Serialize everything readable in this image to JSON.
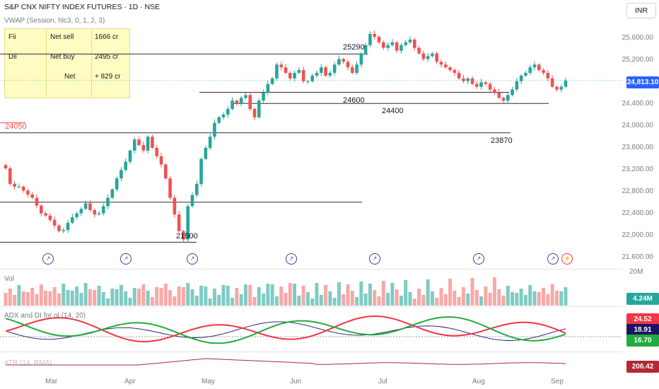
{
  "header": {
    "title": "S&P CNX NIFTY INDEX FUTURES · 1D · NSE",
    "indicator": "VWAP (Session, hlc3, 0, 1, 2, 3)",
    "currency": "INR"
  },
  "info_table": {
    "rows": [
      {
        "label": "Fii",
        "action": "Net sell",
        "value": "1666 cr"
      },
      {
        "label": "Dii",
        "action": "Net buy",
        "value": "2495 cr"
      },
      {
        "label": "",
        "action": "Net",
        "value": "+ 829 cr"
      }
    ]
  },
  "price_axis": {
    "ticks": [
      "25,600.00",
      "25,200.00",
      "24,400.00",
      "24,000.00",
      "23,600.00",
      "23,200.00",
      "22,800.00",
      "22,400.00",
      "22,000.00",
      "21,600.00"
    ],
    "current_price": "24,813.10",
    "current_color": "#2962ff"
  },
  "levels": [
    {
      "label": "25290",
      "value": 25290
    },
    {
      "label": "24600",
      "value": 24600
    },
    {
      "label": "24400",
      "value": 24400
    },
    {
      "label": "24050",
      "value": 24050
    },
    {
      "label": "23870",
      "value": 23870
    },
    {
      "label": "21900",
      "value": 21900
    }
  ],
  "volume": {
    "label": "Vol",
    "axis_tick": "20M",
    "current": "4.24M",
    "current_color": "#26a69a"
  },
  "adx": {
    "label": "ADX and DI for ol (14, 20)",
    "values": [
      {
        "value": "24.52",
        "color": "#f23645"
      },
      {
        "value": "18.91",
        "color": "#1b1464"
      },
      {
        "value": "16.70",
        "color": "#22ab3f"
      }
    ]
  },
  "atr": {
    "label": "ATR (14, RMA)",
    "current": "206.42",
    "color": "#b22833"
  },
  "x_axis": {
    "months": [
      "Mar",
      "Apr",
      "May",
      "Jun",
      "Jul",
      "Aug",
      "Sep"
    ]
  },
  "colors": {
    "up": "#26a69a",
    "down": "#ef5350",
    "level_line": "#131722",
    "table_bg": "#fffcc2"
  },
  "chart_data": {
    "type": "candlestick",
    "title": "S&P CNX NIFTY INDEX FUTURES · 1D · NSE",
    "ylim": [
      21600,
      25800
    ],
    "closes": [
      23230,
      22950,
      22900,
      22900,
      22830,
      22760,
      22700,
      22560,
      22420,
      22380,
      22300,
      22200,
      22100,
      22120,
      22250,
      22350,
      22420,
      22500,
      22600,
      22480,
      22400,
      22420,
      22550,
      22700,
      22850,
      23050,
      23200,
      23350,
      23550,
      23750,
      23650,
      23550,
      23800,
      23600,
      23450,
      23300,
      23050,
      22700,
      22400,
      22100,
      21950,
      22550,
      22750,
      22950,
      23400,
      23600,
      23800,
      24050,
      24150,
      24200,
      24300,
      24450,
      24400,
      24500,
      24550,
      24300,
      24150,
      24450,
      24600,
      24750,
      24850,
      25100,
      25050,
      24950,
      24850,
      24950,
      25000,
      24800,
      24800,
      24900,
      24950,
      25050,
      24900,
      24950,
      25100,
      25200,
      25150,
      25050,
      24950,
      25100,
      25300,
      25450,
      25650,
      25600,
      25500,
      25400,
      25450,
      25500,
      25350,
      25450,
      25500,
      25550,
      25400,
      25300,
      25200,
      25250,
      25300,
      25150,
      25100,
      25050,
      25000,
      24950,
      24850,
      24800,
      24850,
      24750,
      24700,
      24780,
      24750,
      24650,
      24600,
      24500,
      24450,
      24550,
      24650,
      24800,
      24900,
      24950,
      25050,
      25100,
      25000,
      24950,
      24850,
      24700,
      24650,
      24700,
      24813
    ]
  }
}
